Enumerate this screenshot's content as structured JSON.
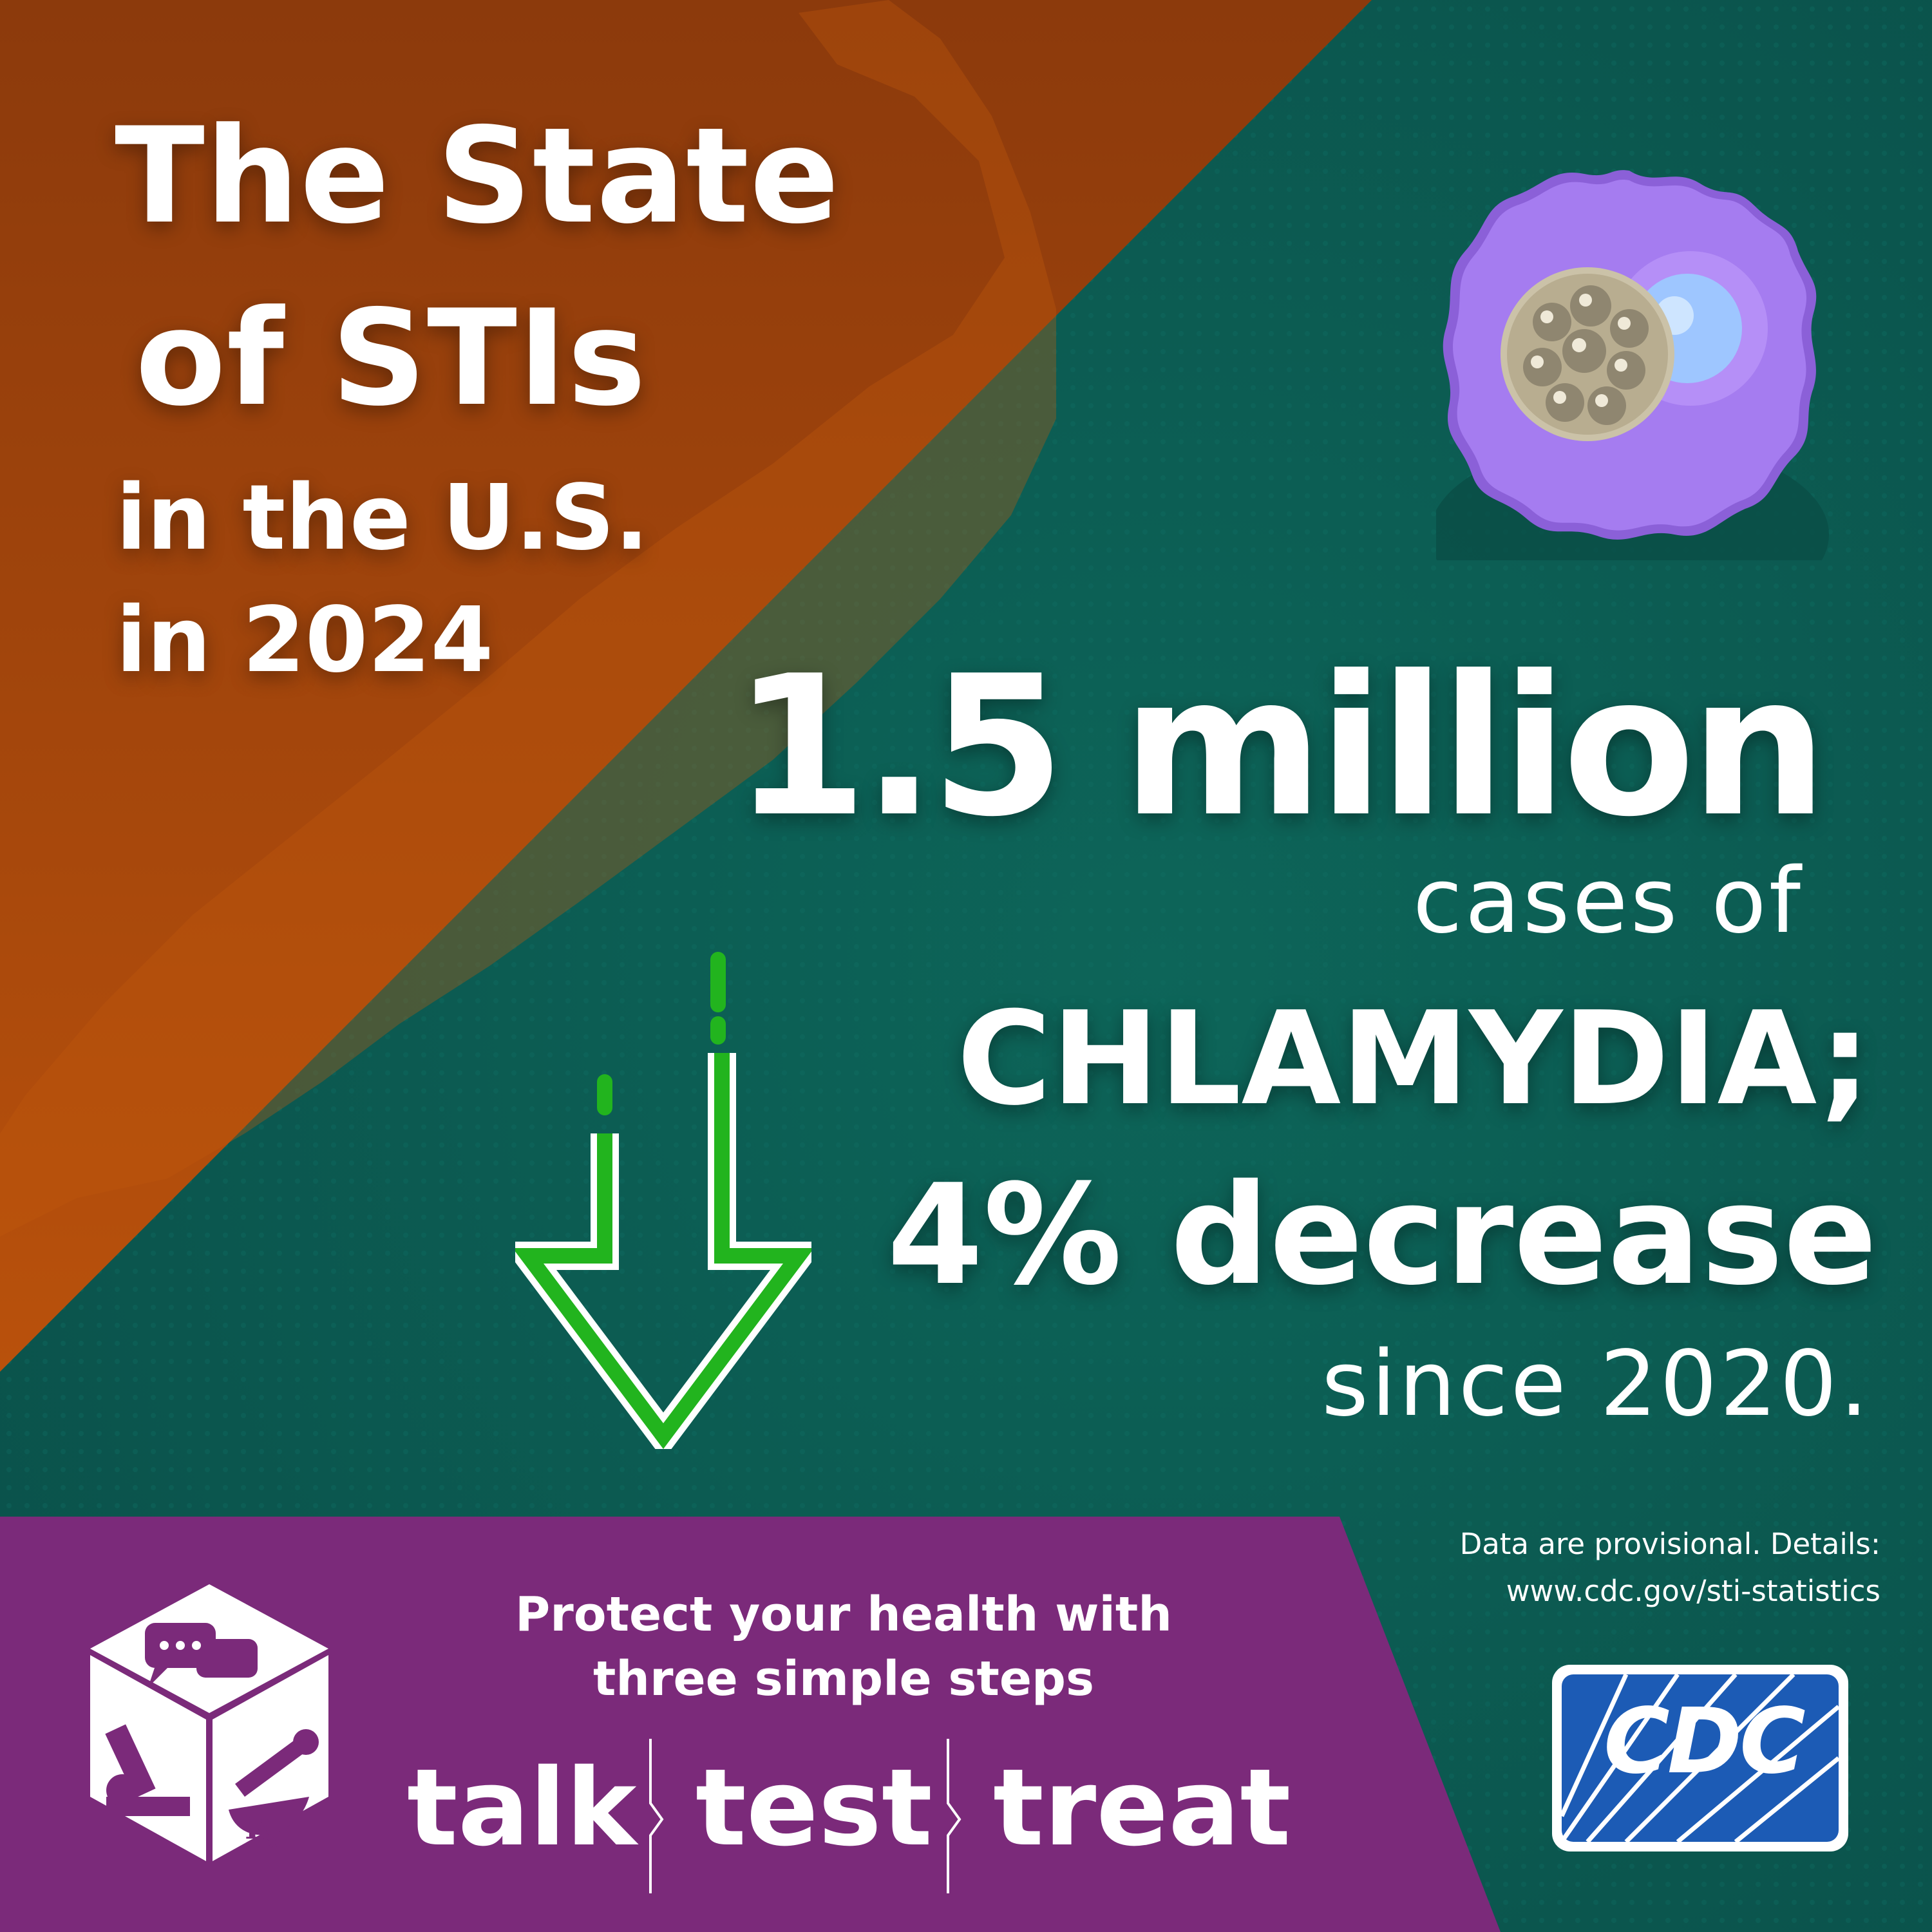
{
  "colors": {
    "orange_panel": "#a8470c",
    "teal_background": "#0b5a52",
    "purple_banner": "#7b2a7a",
    "arrow_green": "#22b41e",
    "cell_purple": "#a57cf0",
    "cdc_blue": "#1c5bb5"
  },
  "title": {
    "line1": "The State",
    "line2": "of STIs",
    "line3": "in the U.S.",
    "line4": "in 2024"
  },
  "stat": {
    "value": "1.5 million",
    "unit_text": "cases of",
    "disease": "CHLAMYDIA;",
    "change": "4% decrease",
    "since": "since 2020."
  },
  "footnote": {
    "line1": "Data are provisional. Details:",
    "line2": "www.cdc.gov/sti-statistics"
  },
  "banner": {
    "protect_line1": "Protect your health with",
    "protect_line2": "three simple steps",
    "steps": [
      "talk",
      "test",
      "treat"
    ]
  },
  "logo": {
    "text": "CDC"
  },
  "icons": {
    "cell": "bacteria-cell-icon",
    "arrow": "down-arrow-icon",
    "cube": "talk-test-treat-cube-icon",
    "cdc": "cdc-logo"
  }
}
